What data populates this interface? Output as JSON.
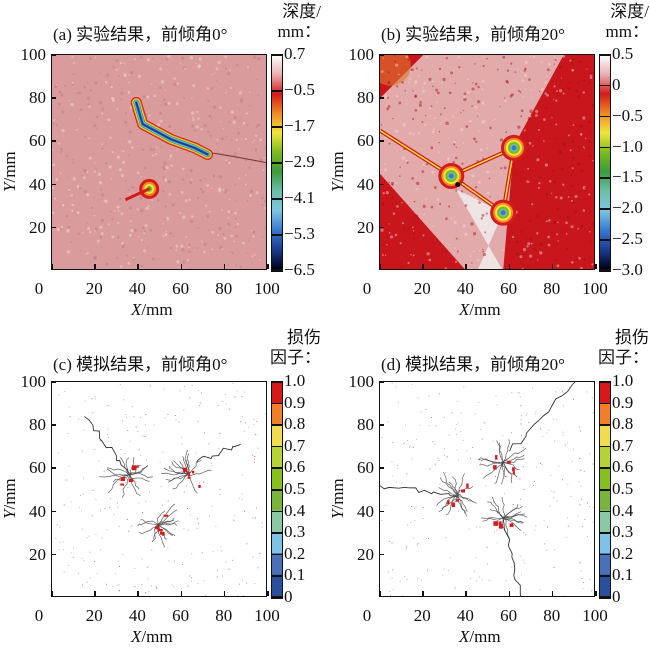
{
  "chart_data": [
    {
      "id": "a",
      "type": "heatmap",
      "title": "(a) 实验结果，前倾角0°",
      "xlabel_italic": "X",
      "xlabel_unit": "/mm",
      "ylabel_italic": "Y",
      "ylabel_unit": "/mm",
      "xlim": [
        0,
        100
      ],
      "ylim": [
        0,
        100
      ],
      "xticks": [
        "0",
        "20",
        "40",
        "60",
        "80",
        "100"
      ],
      "yticks": [
        "20",
        "40",
        "60",
        "80",
        "100"
      ],
      "colorbar": {
        "title_line1": "深度/",
        "title_line2": "mm：",
        "ticks": [
          "0.7",
          "−0.5",
          "−1.7",
          "−2.9",
          "−4.1",
          "−5.3",
          "−6.5"
        ],
        "range": [
          -6.5,
          0.7
        ],
        "colors": [
          "#ffffff",
          "#e8b0b0",
          "#d41b1b",
          "#f08a25",
          "#f2e43c",
          "#7cbb1e",
          "#3c9a3c",
          "#6dbfa8",
          "#7ec4e0",
          "#3a78d0",
          "#1a3c90",
          "#000018"
        ]
      },
      "background": "#d99b9b",
      "features": [
        {
          "kind": "crack-trench",
          "description": "elongated pit from (40,72) to (72,55)",
          "depth_min": -6.5
        },
        {
          "kind": "pit",
          "description": "star-shaped pit near (45,38)",
          "depth_min": -3.5
        },
        {
          "kind": "crack-line",
          "description": "hairline crack from (72,55) to (100,50)"
        }
      ]
    },
    {
      "id": "b",
      "type": "heatmap",
      "title": "(b) 实验结果，前倾角20°",
      "xlabel_italic": "X",
      "xlabel_unit": "/mm",
      "ylabel_italic": "Y",
      "ylabel_unit": "/mm",
      "xlim": [
        0,
        100
      ],
      "ylim": [
        0,
        100
      ],
      "xticks": [
        "0",
        "20",
        "40",
        "60",
        "80",
        "100"
      ],
      "yticks": [
        "20",
        "40",
        "60",
        "80",
        "100"
      ],
      "colorbar": {
        "title_line1": "深度/",
        "title_line2": "mm：",
        "ticks": [
          "0.5",
          "0",
          "−0.5",
          "−1.0",
          "−1.5",
          "−2.0",
          "−2.5",
          "−3.0"
        ],
        "range": [
          -3.0,
          0.5
        ],
        "colors": [
          "#ffffff",
          "#e8b0b0",
          "#d41b1b",
          "#f08a25",
          "#f2e43c",
          "#7cbb1e",
          "#3c9a3c",
          "#6dbfa8",
          "#7ec4e0",
          "#3a78d0",
          "#1a3c90",
          "#000018"
        ]
      },
      "background": "#c8161c",
      "features": [
        {
          "kind": "pit",
          "description": "pit cluster near (33,44)"
        },
        {
          "kind": "pit",
          "description": "pit cluster near (62,57)"
        },
        {
          "kind": "pit",
          "description": "pit cluster near (57,27)"
        },
        {
          "kind": "crack-line",
          "description": "crack from (0,65) to (33,44)"
        },
        {
          "kind": "light-region",
          "description": "pale triangular band between pits and toward bottom"
        }
      ]
    },
    {
      "id": "c",
      "type": "heatmap",
      "title": "(c) 模拟结果，前倾角0°",
      "xlabel_italic": "X",
      "xlabel_unit": "/mm",
      "ylabel_italic": "Y",
      "ylabel_unit": "/mm",
      "xlim": [
        0,
        100
      ],
      "ylim": [
        0,
        100
      ],
      "xticks": [
        "0",
        "20",
        "40",
        "60",
        "80",
        "100"
      ],
      "yticks": [
        "20",
        "40",
        "60",
        "80",
        "100"
      ],
      "colorbar": {
        "title_line1": "损伤",
        "title_line2": "因子：",
        "ticks": [
          "1.0",
          "0.9",
          "0.8",
          "0.7",
          "0.6",
          "0.5",
          "0.4",
          "0.3",
          "0.2",
          "0.1",
          "0"
        ],
        "range": [
          0,
          1.0
        ],
        "colors": [
          "#d7191c",
          "#f07f2a",
          "#f1dc50",
          "#b5d336",
          "#89be1f",
          "#79b43c",
          "#8bc8a4",
          "#80c2e6",
          "#4a70b8",
          "#2a4f9c"
        ]
      },
      "background": "#ffffff",
      "features": [
        {
          "kind": "crack-cluster",
          "center": [
            36,
            57
          ]
        },
        {
          "kind": "crack-cluster",
          "center": [
            63,
            57
          ]
        },
        {
          "kind": "crack-cluster",
          "center": [
            49,
            34
          ]
        },
        {
          "kind": "crack-branch",
          "from": [
            15,
            84
          ],
          "to": [
            36,
            57
          ]
        },
        {
          "kind": "crack-branch",
          "from": [
            67,
            63
          ],
          "to": [
            88,
            71
          ]
        }
      ]
    },
    {
      "id": "d",
      "type": "heatmap",
      "title": "(d) 模拟结果，前倾角20°",
      "xlabel_italic": "X",
      "xlabel_unit": "/mm",
      "ylabel_italic": "Y",
      "ylabel_unit": "/mm",
      "xlim": [
        0,
        100
      ],
      "ylim": [
        0,
        100
      ],
      "xticks": [
        "0",
        "20",
        "40",
        "60",
        "80",
        "100"
      ],
      "yticks": [
        "20",
        "40",
        "60",
        "80",
        "100"
      ],
      "colorbar": {
        "title_line1": "损伤",
        "title_line2": "因子：",
        "ticks": [
          "1.0",
          "0.9",
          "0.8",
          "0.7",
          "0.6",
          "0.5",
          "0.4",
          "0.3",
          "0.2",
          "0.1",
          "0"
        ],
        "range": [
          0,
          1.0
        ],
        "colors": [
          "#d7191c",
          "#f07f2a",
          "#f1dc50",
          "#b5d336",
          "#89be1f",
          "#79b43c",
          "#8bc8a4",
          "#80c2e6",
          "#4a70b8",
          "#2a4f9c"
        ]
      },
      "background": "#ffffff",
      "features": [
        {
          "kind": "crack-cluster",
          "center": [
            36,
            48
          ]
        },
        {
          "kind": "crack-cluster",
          "center": [
            57,
            63
          ]
        },
        {
          "kind": "crack-cluster",
          "center": [
            57,
            37
          ]
        },
        {
          "kind": "crack-branch",
          "from": [
            0,
            52
          ],
          "to": [
            36,
            48
          ]
        },
        {
          "kind": "crack-branch",
          "from": [
            60,
            68
          ],
          "to": [
            90,
            100
          ]
        },
        {
          "kind": "crack-branch",
          "from": [
            57,
            37
          ],
          "to": [
            65,
            0
          ]
        }
      ]
    }
  ]
}
